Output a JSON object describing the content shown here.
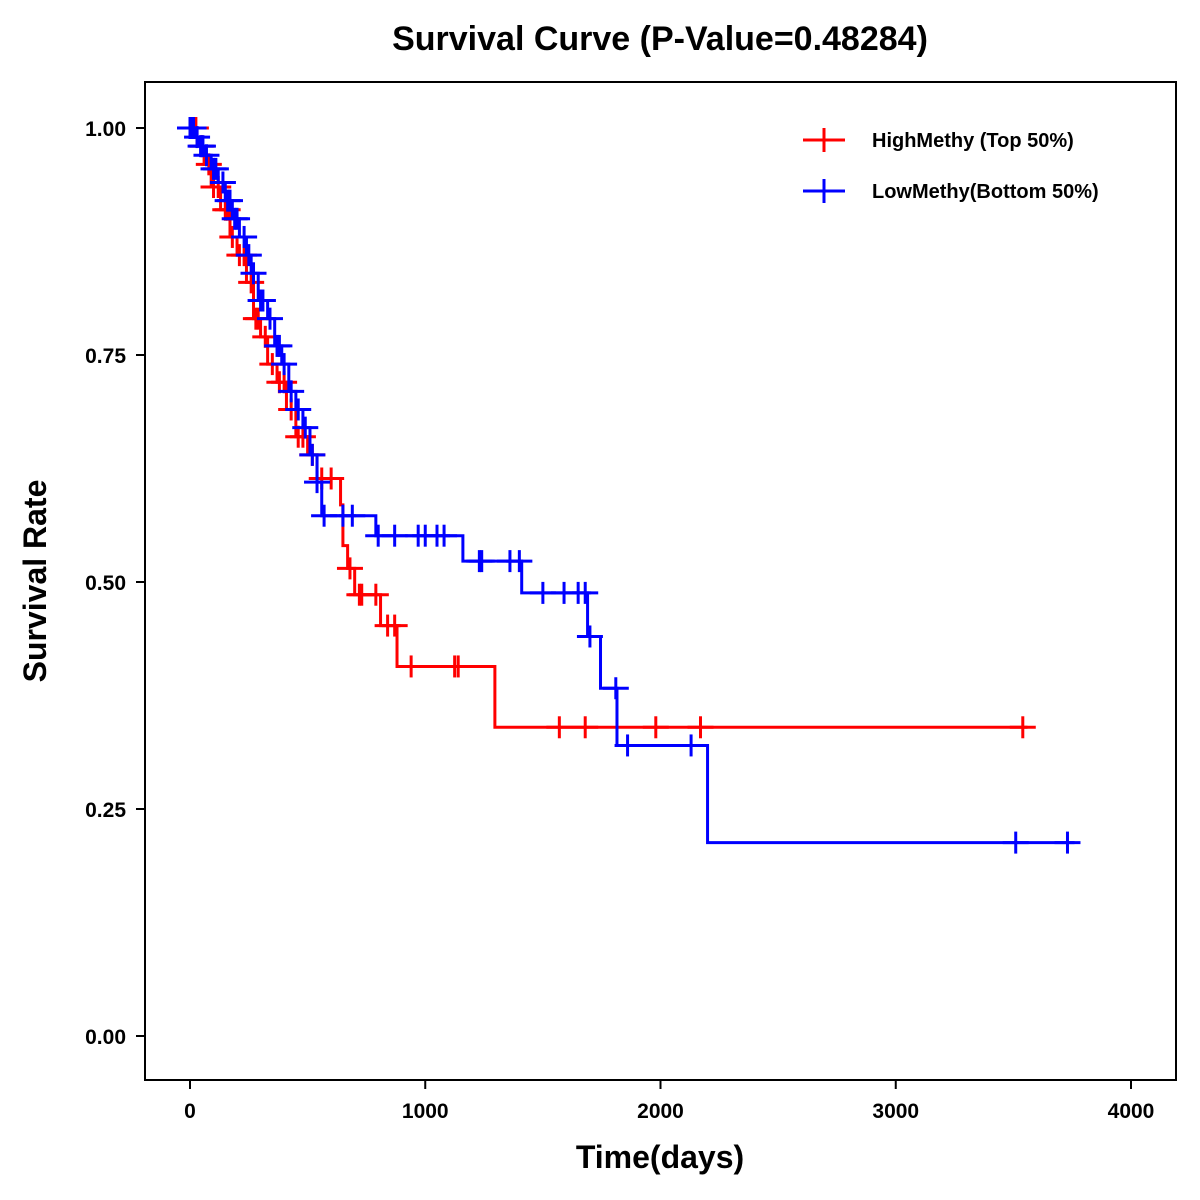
{
  "chart_data": {
    "type": "line",
    "title": "Survival Curve (P-Value=0.48284)",
    "xlabel": "Time(days)",
    "ylabel": "Survival Rate",
    "xlim": [
      -200,
      4200
    ],
    "ylim": [
      -0.05,
      1.05
    ],
    "xticks": [
      0,
      1000,
      2000,
      3000,
      4000
    ],
    "xtick_labels": [
      "0",
      "1000",
      "2000",
      "3000",
      "4000"
    ],
    "yticks": [
      0,
      0.25,
      0.5,
      0.75,
      1.0
    ],
    "ytick_labels": [
      "0.00",
      "0.25",
      "0.50",
      "0.75",
      "1.00"
    ],
    "legend_position": "top-right",
    "series": [
      {
        "name": "HighMethy (Top 50%)",
        "color": "#ff0000",
        "steps": [
          [
            0,
            1
          ],
          [
            30,
            0.98
          ],
          [
            60,
            0.96
          ],
          [
            90,
            0.935
          ],
          [
            130,
            0.91
          ],
          [
            170,
            0.88
          ],
          [
            200,
            0.86
          ],
          [
            240,
            0.83
          ],
          [
            270,
            0.79
          ],
          [
            300,
            0.77
          ],
          [
            330,
            0.74
          ],
          [
            370,
            0.72
          ],
          [
            410,
            0.69
          ],
          [
            450,
            0.66
          ],
          [
            500,
            0.64
          ],
          [
            540,
            0.614
          ],
          [
            640,
            0.585
          ],
          [
            650,
            0.54
          ],
          [
            670,
            0.515
          ],
          [
            700,
            0.486
          ],
          [
            810,
            0.452
          ],
          [
            880,
            0.407
          ],
          [
            1296,
            0.34
          ]
        ],
        "end": 3560,
        "censors": [
          10,
          25,
          50,
          80,
          100,
          120,
          150,
          160,
          180,
          210,
          230,
          260,
          280,
          290,
          320,
          350,
          380,
          400,
          430,
          460,
          480,
          520,
          560,
          600,
          680,
          720,
          730,
          790,
          840,
          870,
          940,
          1125,
          1140,
          1570,
          1680,
          1980,
          2170,
          3540
        ]
      },
      {
        "name": "LowMethy(Bottom 50%)",
        "color": "#0000ff",
        "steps": [
          [
            0,
            1
          ],
          [
            20,
            0.99
          ],
          [
            40,
            0.98
          ],
          [
            60,
            0.97
          ],
          [
            90,
            0.955
          ],
          [
            120,
            0.94
          ],
          [
            150,
            0.92
          ],
          [
            180,
            0.9
          ],
          [
            210,
            0.88
          ],
          [
            240,
            0.86
          ],
          [
            260,
            0.84
          ],
          [
            290,
            0.81
          ],
          [
            330,
            0.79
          ],
          [
            360,
            0.76
          ],
          [
            390,
            0.74
          ],
          [
            420,
            0.71
          ],
          [
            450,
            0.69
          ],
          [
            480,
            0.67
          ],
          [
            510,
            0.64
          ],
          [
            540,
            0.61
          ],
          [
            560,
            0.573
          ],
          [
            790,
            0.551
          ],
          [
            1160,
            0.523
          ],
          [
            1410,
            0.488
          ],
          [
            1690,
            0.44
          ],
          [
            1745,
            0.383
          ],
          [
            1815,
            0.32
          ],
          [
            2200,
            0.213
          ]
        ],
        "end": 3760,
        "censors": [
          0,
          5,
          15,
          30,
          45,
          55,
          70,
          100,
          110,
          140,
          160,
          170,
          190,
          200,
          230,
          250,
          270,
          300,
          310,
          340,
          370,
          380,
          400,
          430,
          460,
          490,
          520,
          540,
          570,
          650,
          690,
          800,
          870,
          970,
          1000,
          1050,
          1080,
          1230,
          1240,
          1360,
          1400,
          1500,
          1590,
          1650,
          1680,
          1700,
          1810,
          1860,
          2130,
          3510,
          3730
        ]
      }
    ]
  }
}
